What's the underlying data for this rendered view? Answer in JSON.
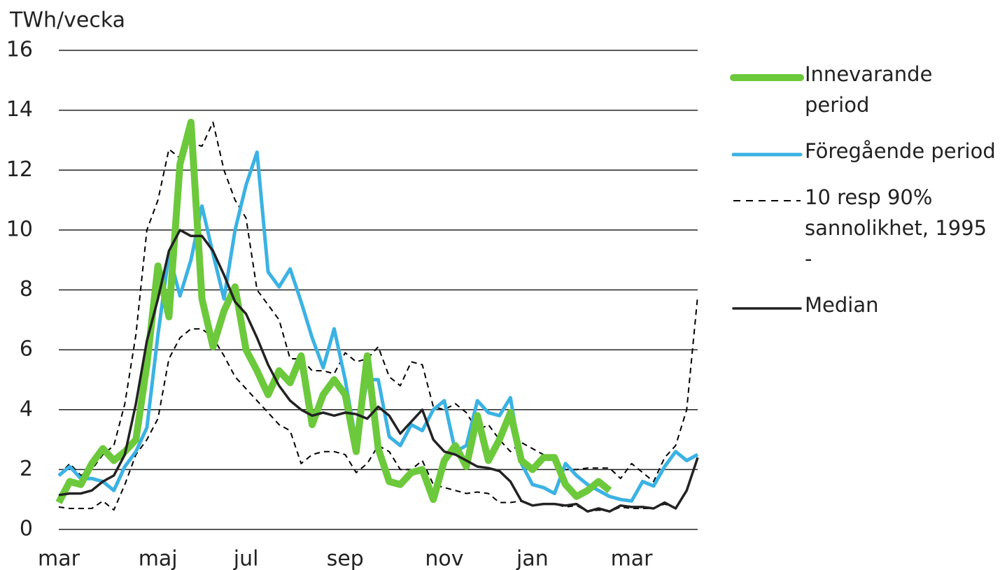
{
  "chart_data": {
    "type": "line",
    "y_label": "TWh/vecka",
    "categories": [
      "mar",
      null,
      null,
      null,
      null,
      null,
      null,
      null,
      null,
      "maj",
      null,
      null,
      null,
      null,
      null,
      null,
      null,
      "jul",
      null,
      null,
      null,
      null,
      null,
      null,
      null,
      null,
      "sep",
      null,
      null,
      null,
      null,
      null,
      null,
      null,
      null,
      "nov",
      null,
      null,
      null,
      null,
      null,
      null,
      null,
      "jan",
      null,
      null,
      null,
      null,
      null,
      null,
      null,
      null,
      "mar",
      null,
      null,
      null,
      null,
      null,
      null
    ],
    "ylim": [
      0,
      16
    ],
    "yticks": [
      0,
      2,
      4,
      6,
      8,
      10,
      12,
      14,
      16
    ],
    "grid": true,
    "series": [
      {
        "name": "Innevarande period",
        "color": "#6cc93c",
        "width": 10,
        "values": [
          0.9,
          1.6,
          1.5,
          2.2,
          2.7,
          2.3,
          2.6,
          3.0,
          5.5,
          8.8,
          7.1,
          12.2,
          13.6,
          7.7,
          6.1,
          7.3,
          8.1,
          6.0,
          5.3,
          4.5,
          5.3,
          4.9,
          5.8,
          3.5,
          4.5,
          5.0,
          4.5,
          2.6,
          5.8,
          2.7,
          1.6,
          1.5,
          1.9,
          2.0,
          1.0,
          2.3,
          2.8,
          2.1,
          3.8,
          2.3,
          3.0,
          3.9,
          2.3,
          2.0,
          2.4,
          2.4,
          1.5,
          1.1,
          1.3,
          1.6,
          1.3,
          null,
          null,
          null,
          null,
          null,
          null,
          null,
          null
        ]
      },
      {
        "name": "Föregående period",
        "color": "#3bb2e3",
        "width": 5,
        "values": [
          1.8,
          2.1,
          1.7,
          1.7,
          1.6,
          1.3,
          2.1,
          2.6,
          3.4,
          6.5,
          9.2,
          7.8,
          9.0,
          10.8,
          9.2,
          7.7,
          10.0,
          11.5,
          12.6,
          8.6,
          8.1,
          8.7,
          7.6,
          6.4,
          5.4,
          6.7,
          5.0,
          2.9,
          5.0,
          5.0,
          3.1,
          2.8,
          3.5,
          3.3,
          4.0,
          4.3,
          2.6,
          2.8,
          4.3,
          3.9,
          3.8,
          4.4,
          2.2,
          1.5,
          1.4,
          1.2,
          2.2,
          1.8,
          1.5,
          1.3,
          1.1,
          1.0,
          0.95,
          1.6,
          1.45,
          2.1,
          2.6,
          2.3,
          2.5
        ]
      },
      {
        "name": "10 resp 90% sannolikhet, 1995 -",
        "color": "#000000",
        "width": 2,
        "dashed": true,
        "values": [
          0.75,
          0.7,
          0.7,
          0.7,
          0.95,
          0.65,
          1.5,
          2.5,
          3.0,
          3.7,
          5.7,
          6.4,
          6.7,
          6.7,
          6.4,
          5.8,
          5.1,
          4.7,
          4.3,
          3.9,
          3.5,
          3.3,
          2.2,
          2.5,
          2.6,
          2.6,
          2.5,
          1.9,
          2.2,
          2.8,
          2.6,
          2.0,
          2.0,
          2.3,
          1.5,
          1.4,
          1.3,
          1.2,
          1.25,
          1.2,
          0.9,
          0.9,
          0.95,
          0.8,
          0.85,
          0.85,
          0.75,
          0.8,
          0.6,
          0.65,
          0.6,
          0.75,
          0.7,
          0.7,
          0.7,
          0.85,
          0.7,
          1.3,
          2.4
        ],
        "upper_values": [
          1.8,
          2.2,
          1.8,
          2.0,
          2.5,
          2.8,
          4.2,
          6.5,
          10.0,
          11.0,
          12.7,
          12.4,
          12.9,
          12.8,
          13.6,
          12.0,
          11.0,
          10.4,
          8.0,
          7.5,
          7.0,
          5.7,
          5.7,
          5.3,
          5.3,
          5.2,
          5.9,
          5.6,
          5.7,
          6.1,
          5.1,
          4.8,
          5.6,
          5.5,
          4.1,
          4.0,
          4.2,
          3.9,
          3.3,
          3.5,
          3.0,
          2.6,
          2.9,
          2.7,
          2.5,
          2.3,
          2.0,
          2.0,
          2.05,
          2.05,
          2.05,
          1.7,
          2.2,
          1.9,
          1.6,
          2.4,
          2.8,
          4.0,
          7.8
        ]
      },
      {
        "name": "Median",
        "color": "#222222",
        "width": 3.5,
        "values": [
          1.15,
          1.2,
          1.2,
          1.3,
          1.6,
          1.8,
          2.5,
          4.2,
          6.3,
          7.7,
          9.3,
          10.0,
          9.8,
          9.8,
          9.3,
          8.5,
          7.6,
          7.2,
          6.4,
          5.5,
          4.8,
          4.3,
          4.0,
          3.8,
          3.9,
          3.8,
          3.9,
          3.85,
          3.7,
          4.1,
          3.8,
          3.2,
          3.6,
          4.0,
          3.0,
          2.6,
          2.5,
          2.3,
          2.1,
          2.05,
          1.95,
          1.6,
          0.95,
          0.8,
          0.85,
          0.85,
          0.8,
          0.85,
          0.6,
          0.7,
          0.6,
          0.8,
          0.75,
          0.75,
          0.7,
          0.9,
          0.7,
          1.3,
          2.4
        ]
      }
    ]
  }
}
